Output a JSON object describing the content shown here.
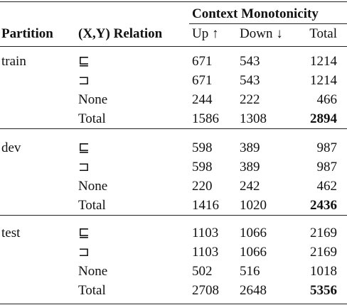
{
  "table": {
    "group_header": "Context Monotonicity",
    "columns": [
      "Partition",
      "(X,Y) Relation",
      "Up ↑",
      "Down ↓",
      "Total"
    ],
    "groups": [
      {
        "partition": "train",
        "rows": [
          [
            "⊑",
            671,
            543,
            1214
          ],
          [
            "⊐",
            671,
            543,
            1214
          ],
          [
            "None",
            244,
            222,
            466
          ],
          [
            "Total",
            1586,
            1308,
            2894
          ]
        ]
      },
      {
        "partition": "dev",
        "rows": [
          [
            "⊑",
            598,
            389,
            987
          ],
          [
            "⊐",
            598,
            389,
            987
          ],
          [
            "None",
            220,
            242,
            462
          ],
          [
            "Total",
            1416,
            1020,
            2436
          ]
        ]
      },
      {
        "partition": "test",
        "rows": [
          [
            "⊑",
            1103,
            1066,
            2169
          ],
          [
            "⊐",
            1103,
            1066,
            2169
          ],
          [
            "None",
            502,
            516,
            1018
          ],
          [
            "Total",
            2708,
            2648,
            5356
          ]
        ]
      }
    ]
  }
}
